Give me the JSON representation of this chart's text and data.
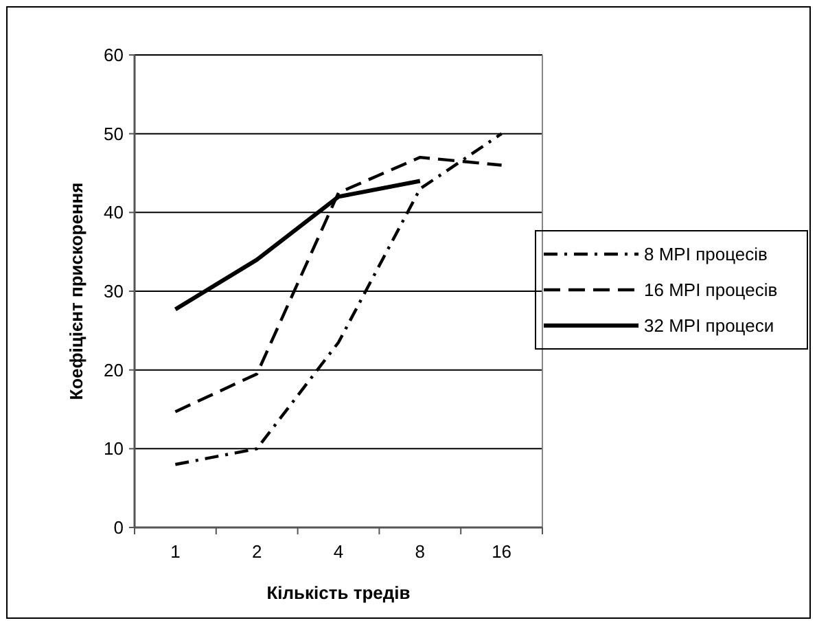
{
  "chart_data": {
    "type": "line",
    "xlabel": "Кількість тредів",
    "ylabel": "Коефіцієнт прискорення",
    "categories": [
      "1",
      "2",
      "4",
      "8",
      "16"
    ],
    "series": [
      {
        "name": "8 MPI процесів",
        "color": "#000000",
        "line_style": "dotted",
        "values": [
          8,
          10,
          23.5,
          43,
          50
        ]
      },
      {
        "name": "16 MPI процесів",
        "color": "#000000",
        "line_style": "dashed",
        "values": [
          14.7,
          19.5,
          42.5,
          47,
          46
        ]
      },
      {
        "name": "32 MPI процеси",
        "color": "#000000",
        "line_style": "solid",
        "values": [
          27.7,
          34,
          42,
          44,
          null
        ]
      }
    ],
    "ylim": [
      0,
      60
    ],
    "yticks": [
      0,
      10,
      20,
      30,
      40,
      50,
      60
    ],
    "grid": "y",
    "legend": "right",
    "marker": "none"
  }
}
